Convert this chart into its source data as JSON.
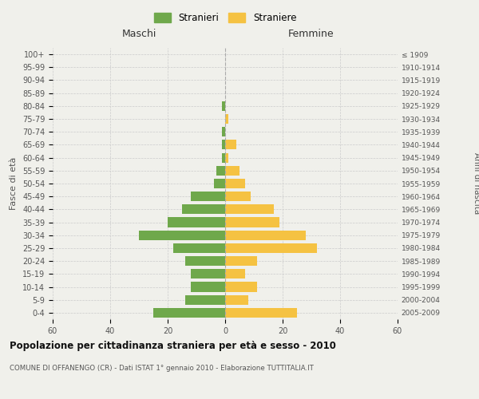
{
  "age_groups": [
    "100+",
    "95-99",
    "90-94",
    "85-89",
    "80-84",
    "75-79",
    "70-74",
    "65-69",
    "60-64",
    "55-59",
    "50-54",
    "45-49",
    "40-44",
    "35-39",
    "30-34",
    "25-29",
    "20-24",
    "15-19",
    "10-14",
    "5-9",
    "0-4"
  ],
  "birth_years": [
    "≤ 1909",
    "1910-1914",
    "1915-1919",
    "1920-1924",
    "1925-1929",
    "1930-1934",
    "1935-1939",
    "1940-1944",
    "1945-1949",
    "1950-1954",
    "1955-1959",
    "1960-1964",
    "1965-1969",
    "1970-1974",
    "1975-1979",
    "1980-1984",
    "1985-1989",
    "1990-1994",
    "1995-1999",
    "2000-2004",
    "2005-2009"
  ],
  "maschi": [
    0,
    0,
    0,
    0,
    1,
    0,
    1,
    1,
    1,
    3,
    4,
    12,
    15,
    20,
    30,
    18,
    14,
    12,
    12,
    14,
    25
  ],
  "femmine": [
    0,
    0,
    0,
    0,
    0,
    1,
    0,
    4,
    1,
    5,
    7,
    9,
    17,
    19,
    28,
    32,
    11,
    7,
    11,
    8,
    25
  ],
  "male_color": "#6fa84b",
  "female_color": "#f5c242",
  "background_color": "#f0f0eb",
  "grid_color": "#cccccc",
  "title": "Popolazione per cittadinanza straniera per età e sesso - 2010",
  "subtitle": "COMUNE DI OFFANENGO (CR) - Dati ISTAT 1° gennaio 2010 - Elaborazione TUTTITALIA.IT",
  "xlabel_left": "Maschi",
  "xlabel_right": "Femmine",
  "ylabel_left": "Fasce di età",
  "ylabel_right": "Anni di nascita",
  "legend_male": "Stranieri",
  "legend_female": "Straniere",
  "xlim": 60,
  "bar_height": 0.75
}
